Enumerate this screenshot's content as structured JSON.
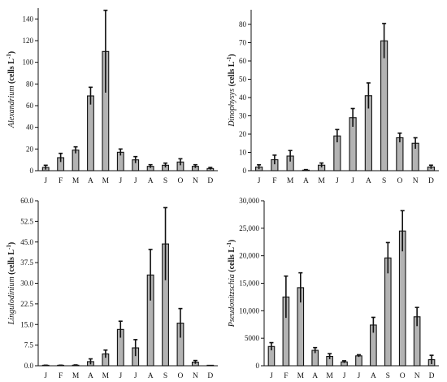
{
  "chart_data": [
    {
      "type": "bar",
      "ylabel": {
        "taxon": "Alexandrium",
        "unit_main": "cells L",
        "unit_sup": "-1"
      },
      "categories": [
        "J",
        "F",
        "M",
        "A",
        "M",
        "J",
        "J",
        "A",
        "S",
        "O",
        "N",
        "D"
      ],
      "values": [
        3,
        12,
        19,
        69,
        110,
        17,
        10,
        4,
        5,
        8,
        4,
        2
      ],
      "errors": [
        2,
        4,
        3,
        8,
        38,
        3,
        3,
        1.5,
        2,
        3,
        1.5,
        1
      ],
      "ylim": [
        0,
        150
      ],
      "yticks": [
        "0",
        "20",
        "40",
        "60",
        "80",
        "100",
        "120",
        "140"
      ]
    },
    {
      "type": "bar",
      "ylabel": {
        "taxon": "Dinophysys",
        "unit_main": "cells L",
        "unit_sup": "-1"
      },
      "categories": [
        "J",
        "F",
        "M",
        "A",
        "M",
        "J",
        "J",
        "A",
        "S",
        "O",
        "N",
        "D"
      ],
      "values": [
        2,
        6,
        8,
        0.3,
        3,
        19,
        29,
        41,
        71,
        18,
        15,
        2
      ],
      "errors": [
        1.2,
        2.5,
        3,
        0.3,
        1.2,
        3.5,
        5,
        7,
        9.5,
        2.5,
        3,
        1
      ],
      "ylim": [
        0,
        88
      ],
      "yticks": [
        "0",
        "10",
        "20",
        "30",
        "40",
        "50",
        "60",
        "70",
        "80"
      ]
    },
    {
      "type": "bar",
      "ylabel": {
        "taxon": "Lingulodinium",
        "unit_main": "cells L",
        "unit_sup": "-1"
      },
      "categories": [
        "J",
        "F",
        "M",
        "A",
        "M",
        "J",
        "J",
        "A",
        "S",
        "O",
        "N",
        "D"
      ],
      "values": [
        0.1,
        0.1,
        0.2,
        1.5,
        4.3,
        13.2,
        6.5,
        33,
        44.3,
        15.5,
        1.3,
        0
      ],
      "errors": [
        0.1,
        0.1,
        0.1,
        1,
        1.4,
        3,
        3,
        9.3,
        13.2,
        5.3,
        0.6,
        0
      ],
      "ylim": [
        0,
        60
      ],
      "yticks": [
        "0.0",
        "7.5",
        "15.0",
        "22.5",
        "30.0",
        "37.5",
        "45.0",
        "52.5",
        "60.0"
      ]
    },
    {
      "type": "bar",
      "ylabel": {
        "taxon": "Pseudonitzschia",
        "unit_main": "cells L",
        "unit_sup": "-1"
      },
      "categories": [
        "J",
        "F",
        "M",
        "A",
        "M",
        "J",
        "J",
        "A",
        "S",
        "O",
        "N",
        "D"
      ],
      "values": [
        3500,
        12500,
        14200,
        2800,
        1700,
        700,
        1800,
        7400,
        19600,
        24500,
        8900,
        1100
      ],
      "errors": [
        700,
        3800,
        2700,
        500,
        500,
        200,
        200,
        1400,
        2800,
        3700,
        1700,
        800
      ],
      "ylim": [
        0,
        30000
      ],
      "yticks": [
        "0",
        "5000",
        "10,000",
        "15,000",
        "20,000",
        "25,000",
        "30,000"
      ]
    }
  ]
}
